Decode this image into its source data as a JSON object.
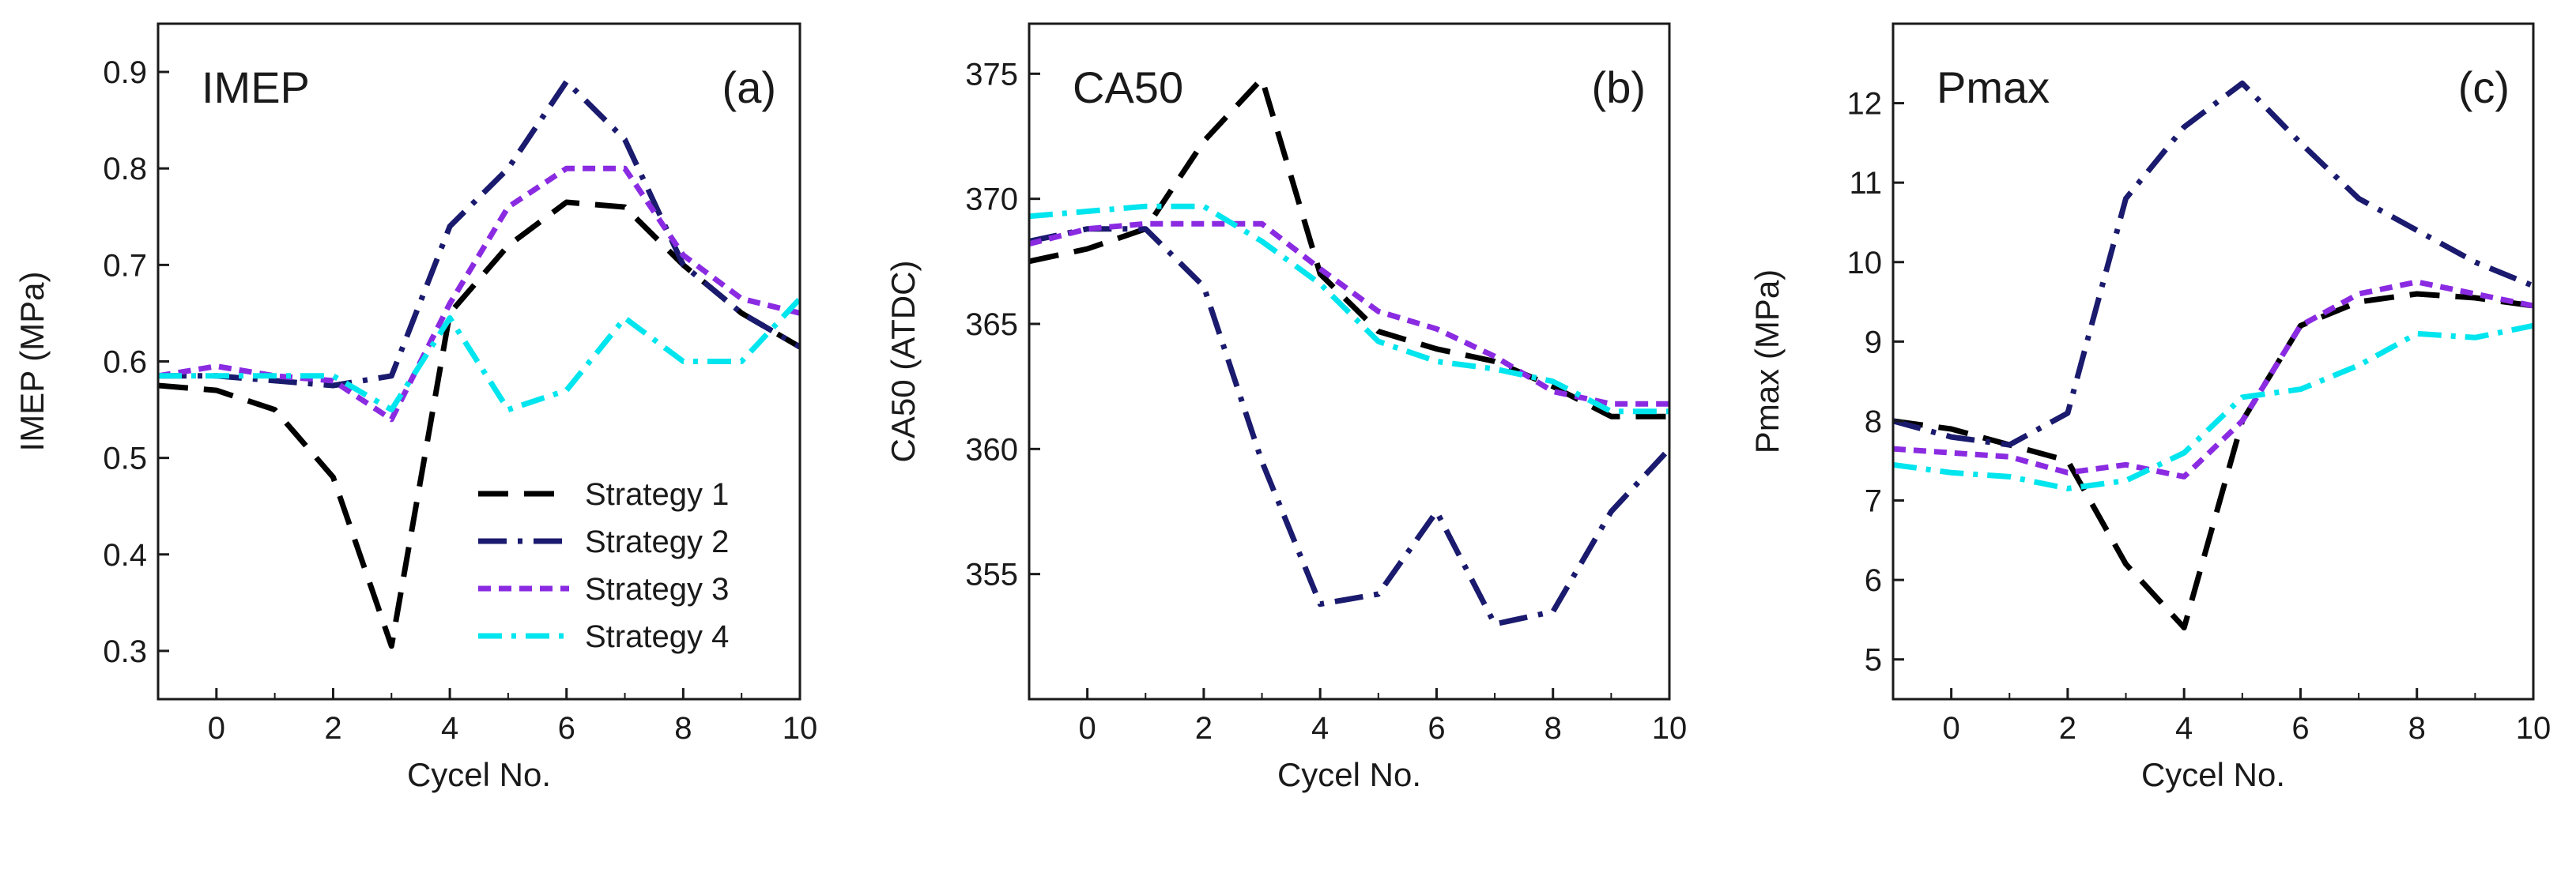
{
  "legend": {
    "entries": [
      "Strategy 1",
      "Strategy 2",
      "Strategy 3",
      "Strategy 4"
    ]
  },
  "series_styles": [
    {
      "color": "#000000",
      "dash": "38 20"
    },
    {
      "color": "#1a1a6e",
      "dash": "36 14 6 14"
    },
    {
      "color": "#8a2be2",
      "dash": "16 10"
    },
    {
      "color": "#00e5ee",
      "dash": "30 12 6 12"
    }
  ],
  "chart_data": [
    {
      "type": "line",
      "title": "IMEP",
      "panel_label": "(a)",
      "xlabel": "Cycel No.",
      "ylabel": "IMEP (MPa)",
      "xlim": [
        -1,
        10
      ],
      "ylim": [
        0.25,
        0.95
      ],
      "xticks": [
        0,
        2,
        4,
        6,
        8,
        10
      ],
      "yticks": [
        0.3,
        0.4,
        0.5,
        0.6,
        0.7,
        0.8,
        0.9
      ],
      "ytick_labels": [
        "0.3",
        "0.4",
        "0.5",
        "0.6",
        "0.7",
        "0.8",
        "0.9"
      ],
      "grid": false,
      "legend_position": "lower-right",
      "x": [
        -1,
        0,
        1,
        2,
        3,
        4,
        5,
        6,
        7,
        8,
        9,
        10
      ],
      "series": [
        {
          "name": "Strategy 1",
          "values": [
            0.575,
            0.57,
            0.55,
            0.48,
            0.305,
            0.65,
            0.72,
            0.765,
            0.76,
            0.7,
            0.65,
            0.615
          ]
        },
        {
          "name": "Strategy 2",
          "values": [
            0.585,
            0.585,
            0.58,
            0.575,
            0.585,
            0.74,
            0.8,
            0.89,
            0.83,
            0.7,
            0.65,
            0.615
          ]
        },
        {
          "name": "Strategy 3",
          "values": [
            0.585,
            0.595,
            0.585,
            0.58,
            0.54,
            0.66,
            0.76,
            0.8,
            0.8,
            0.71,
            0.665,
            0.65
          ]
        },
        {
          "name": "Strategy 4",
          "values": [
            0.585,
            0.585,
            0.585,
            0.585,
            0.55,
            0.645,
            0.55,
            0.57,
            0.645,
            0.6,
            0.6,
            0.665
          ]
        }
      ]
    },
    {
      "type": "line",
      "title": "CA50",
      "panel_label": "(b)",
      "xlabel": "Cycel No.",
      "ylabel": "CA50 (ATDC)",
      "xlim": [
        -1,
        10
      ],
      "ylim": [
        350,
        377
      ],
      "xticks": [
        0,
        2,
        4,
        6,
        8,
        10
      ],
      "yticks": [
        355,
        360,
        365,
        370,
        375
      ],
      "ytick_labels": [
        "355",
        "360",
        "365",
        "370",
        "375"
      ],
      "grid": false,
      "x": [
        -1,
        0,
        1,
        2,
        3,
        4,
        5,
        6,
        7,
        8,
        9,
        10
      ],
      "series": [
        {
          "name": "Strategy 1",
          "values": [
            367.5,
            368.0,
            368.8,
            372.3,
            374.8,
            367.0,
            364.7,
            364.0,
            363.5,
            362.5,
            361.3,
            361.3
          ]
        },
        {
          "name": "Strategy 2",
          "values": [
            368.3,
            368.8,
            368.8,
            366.5,
            359.5,
            353.8,
            354.2,
            357.5,
            353.0,
            353.5,
            357.5,
            360.0
          ]
        },
        {
          "name": "Strategy 3",
          "values": [
            368.2,
            368.8,
            369.0,
            369.0,
            369.0,
            367.2,
            365.5,
            364.8,
            363.7,
            362.3,
            361.8,
            361.8
          ]
        },
        {
          "name": "Strategy 4",
          "values": [
            369.3,
            369.5,
            369.7,
            369.7,
            368.3,
            366.6,
            364.3,
            363.5,
            363.2,
            362.7,
            361.5,
            361.5
          ]
        }
      ]
    },
    {
      "type": "line",
      "title": "Pmax",
      "panel_label": "(c)",
      "xlabel": "Cycel No.",
      "ylabel": "Pmax (MPa)",
      "xlim": [
        -1,
        10
      ],
      "ylim": [
        4.5,
        13
      ],
      "xticks": [
        0,
        2,
        4,
        6,
        8,
        10
      ],
      "yticks": [
        5,
        6,
        7,
        8,
        9,
        10,
        11,
        12
      ],
      "ytick_labels": [
        "5",
        "6",
        "7",
        "8",
        "9",
        "10",
        "11",
        "12"
      ],
      "grid": false,
      "x": [
        -1,
        0,
        1,
        2,
        3,
        4,
        5,
        6,
        7,
        8,
        9,
        10
      ],
      "series": [
        {
          "name": "Strategy 1",
          "values": [
            8.0,
            7.9,
            7.7,
            7.5,
            6.2,
            5.4,
            8.0,
            9.2,
            9.5,
            9.6,
            9.55,
            9.45
          ]
        },
        {
          "name": "Strategy 2",
          "values": [
            8.0,
            7.8,
            7.7,
            8.1,
            10.8,
            11.7,
            12.25,
            11.5,
            10.8,
            10.4,
            10.0,
            9.7
          ]
        },
        {
          "name": "Strategy 3",
          "values": [
            7.65,
            7.6,
            7.55,
            7.35,
            7.45,
            7.3,
            8.0,
            9.2,
            9.6,
            9.75,
            9.6,
            9.45
          ]
        },
        {
          "name": "Strategy 4",
          "values": [
            7.45,
            7.35,
            7.3,
            7.15,
            7.25,
            7.6,
            8.3,
            8.4,
            8.7,
            9.1,
            9.05,
            9.2
          ]
        }
      ]
    }
  ]
}
